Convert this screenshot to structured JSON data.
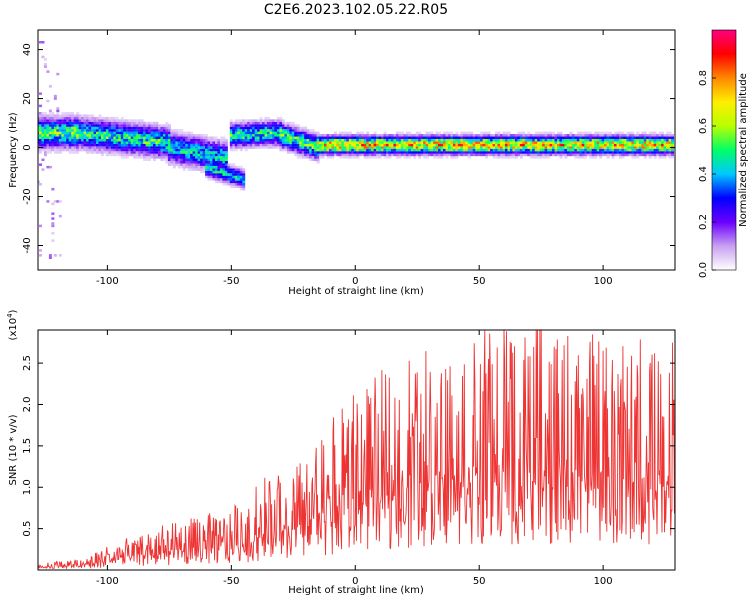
{
  "figure": {
    "title": "C2E6.2023.102.05.22.R05"
  },
  "chart_data": [
    {
      "type": "heatmap",
      "xlabel": "Height of straight line (km)",
      "ylabel": "Frequency (Hz)",
      "xlim": [
        -128,
        129
      ],
      "ylim": [
        -50,
        48
      ],
      "x_ticks": [
        -100,
        -50,
        0,
        50,
        100
      ],
      "y_ticks": [
        -40,
        -20,
        0,
        20,
        40
      ],
      "colorbar": {
        "label": "Normalized spectral amplitude",
        "range": [
          0,
          1
        ],
        "ticks": [
          0.0,
          0.2,
          0.4,
          0.6,
          0.8
        ],
        "colormap": [
          "#ffffff",
          "#c8a0f0",
          "#6a00ff",
          "#0000ff",
          "#00c8ff",
          "#00ff66",
          "#b8ff00",
          "#ffee00",
          "#ff8800",
          "#ff0000",
          "#ff007f"
        ]
      },
      "bands": [
        {
          "x": [
            -128,
            -112
          ],
          "center_hz": [
            6,
            6
          ],
          "halfwidth_hz": 5,
          "amplitude": 0.55
        },
        {
          "x": [
            -112,
            -75
          ],
          "center_hz": [
            6,
            2
          ],
          "halfwidth_hz": 5,
          "amplitude": 0.5
        },
        {
          "x": [
            -75,
            -52
          ],
          "center_hz": [
            0,
            -4
          ],
          "halfwidth_hz": 5,
          "amplitude": 0.45
        },
        {
          "x": [
            -60,
            -45
          ],
          "center_hz": [
            -8,
            -13
          ],
          "halfwidth_hz": 3,
          "amplitude": 0.45
        },
        {
          "x": [
            -50,
            -30
          ],
          "center_hz": [
            5,
            6
          ],
          "halfwidth_hz": 4,
          "amplitude": 0.5
        },
        {
          "x": [
            -30,
            -15
          ],
          "center_hz": [
            5,
            0
          ],
          "halfwidth_hz": 4,
          "amplitude": 0.55
        },
        {
          "x": [
            -15,
            129
          ],
          "center_hz": [
            1,
            1
          ],
          "halfwidth_hz": 3,
          "amplitude": 0.75
        }
      ]
    },
    {
      "type": "line",
      "xlabel": "Height of straight line (km)",
      "ylabel": "SNR (10 * v/v)",
      "y_scale_label": "(x10",
      "y_scale_exp": "4",
      "y_scale_close": ")",
      "xlim": [
        -128,
        129
      ],
      "ylim": [
        0,
        2.9
      ],
      "x_ticks": [
        -100,
        -50,
        0,
        50,
        100
      ],
      "y_ticks": [
        0.5,
        1.0,
        1.5,
        2.0,
        2.5
      ],
      "series": [
        {
          "color": "#ee3333",
          "envelope_x": [
            -128,
            -110,
            -100,
            -80,
            -60,
            -45,
            -38,
            -30,
            -20,
            -10,
            0,
            10,
            20,
            30,
            40,
            50,
            60,
            80,
            100,
            120,
            129
          ],
          "envelope_y": [
            0.05,
            0.1,
            0.2,
            0.35,
            0.45,
            0.55,
            0.75,
            0.8,
            0.9,
            1.2,
            1.45,
            1.6,
            1.75,
            1.85,
            1.9,
            1.95,
            2.0,
            1.95,
            1.9,
            1.9,
            1.95
          ],
          "peak": {
            "x": 60,
            "y": 2.9
          }
        }
      ]
    }
  ]
}
